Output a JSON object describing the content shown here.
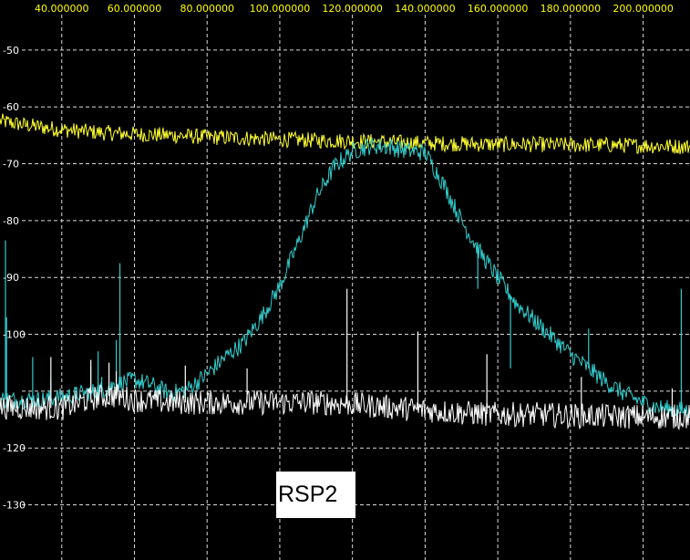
{
  "chart_data": {
    "type": "line",
    "title": "",
    "xlabel": "",
    "ylabel": "",
    "xlim": [
      23.0,
      212.9
    ],
    "ylim": [
      -139.7,
      -41.2
    ],
    "grid": true,
    "x_ticks": [
      40,
      60,
      80,
      100,
      120,
      140,
      160,
      180,
      200
    ],
    "x_tick_labels": [
      "40.000000",
      "60.000000",
      "80.000000",
      "100.000000",
      "120.000000",
      "140.000000",
      "160.000000",
      "180.000000",
      "200.000000"
    ],
    "y_ticks": [
      -50,
      -60,
      -70,
      -80,
      -90,
      -100,
      -110,
      -120,
      -130
    ],
    "y_tick_labels": [
      "-50",
      "-60",
      "-70",
      "-80",
      "-90",
      "-100",
      "",
      "-120",
      "-130"
    ],
    "series": [
      {
        "color": "#ffff33",
        "x": [
          23,
          30,
          40,
          50,
          60,
          70,
          80,
          90,
          100,
          110,
          120,
          130,
          140,
          150,
          160,
          170,
          180,
          190,
          200,
          212.9
        ],
        "values": [
          -62.5,
          -63.2,
          -64.0,
          -64.5,
          -64.8,
          -65.0,
          -65.3,
          -65.5,
          -65.7,
          -65.9,
          -66.0,
          -66.2,
          -66.4,
          -66.5,
          -66.6,
          -66.6,
          -66.7,
          -66.7,
          -66.8,
          -67.0
        ],
        "spikes": []
      },
      {
        "color": "#33cccc",
        "x": [
          23,
          35,
          45,
          50,
          55,
          60,
          65,
          70,
          75,
          80,
          85,
          90,
          95,
          100,
          105,
          110,
          115,
          120,
          125,
          130,
          135,
          140,
          145,
          150,
          155,
          160,
          165,
          170,
          175,
          180,
          185,
          190,
          195,
          200,
          205,
          212.9
        ],
        "values": [
          -111.5,
          -111.5,
          -110.5,
          -110.0,
          -108.8,
          -108.0,
          -109.0,
          -110.5,
          -109.5,
          -107.0,
          -104.0,
          -101.5,
          -97.0,
          -91.5,
          -84.0,
          -76.0,
          -70.5,
          -67.8,
          -66.8,
          -67.0,
          -67.7,
          -68.0,
          -73.5,
          -80.0,
          -85.5,
          -90.0,
          -94.5,
          -97.5,
          -100.5,
          -103.5,
          -106.0,
          -108.5,
          -110.5,
          -112.0,
          -113.0,
          -113.5
        ],
        "spikes": [
          [
            24.5,
            -83.5
          ],
          [
            24.8,
            -97.0
          ],
          [
            32,
            -104.0
          ],
          [
            37,
            -108.0
          ],
          [
            48,
            -105.5
          ],
          [
            50,
            -103.0
          ],
          [
            51,
            -107.5
          ],
          [
            53,
            -109.0
          ],
          [
            55,
            -101.0
          ],
          [
            56,
            -87.5
          ],
          [
            154.5,
            -92.0
          ],
          [
            163.5,
            -106.0
          ],
          [
            185,
            -99.0
          ],
          [
            210.5,
            -92.0
          ]
        ]
      },
      {
        "color": "#ffffff",
        "x": [
          23,
          40,
          50,
          55,
          60,
          70,
          80,
          90,
          100,
          110,
          120,
          130,
          140,
          150,
          160,
          170,
          180,
          190,
          200,
          212.9
        ],
        "values": [
          -112.8,
          -113.0,
          -111.0,
          -110.8,
          -111.5,
          -112.0,
          -112.0,
          -112.0,
          -112.0,
          -112.0,
          -112.3,
          -112.8,
          -113.3,
          -113.8,
          -114.1,
          -114.1,
          -114.3,
          -114.4,
          -114.5,
          -114.5
        ],
        "spikes": [
          [
            37,
            -104.0
          ],
          [
            48,
            -104.5
          ],
          [
            53,
            -105.0
          ],
          [
            55,
            -106.5
          ],
          [
            74,
            -105.5
          ],
          [
            91,
            -106.0
          ],
          [
            118.5,
            -92.0
          ],
          [
            138,
            -99.5
          ],
          [
            157,
            -103.5
          ],
          [
            183,
            -107.5
          ],
          [
            208,
            -109.5
          ]
        ]
      }
    ],
    "annotations": [
      "RSP2"
    ]
  }
}
